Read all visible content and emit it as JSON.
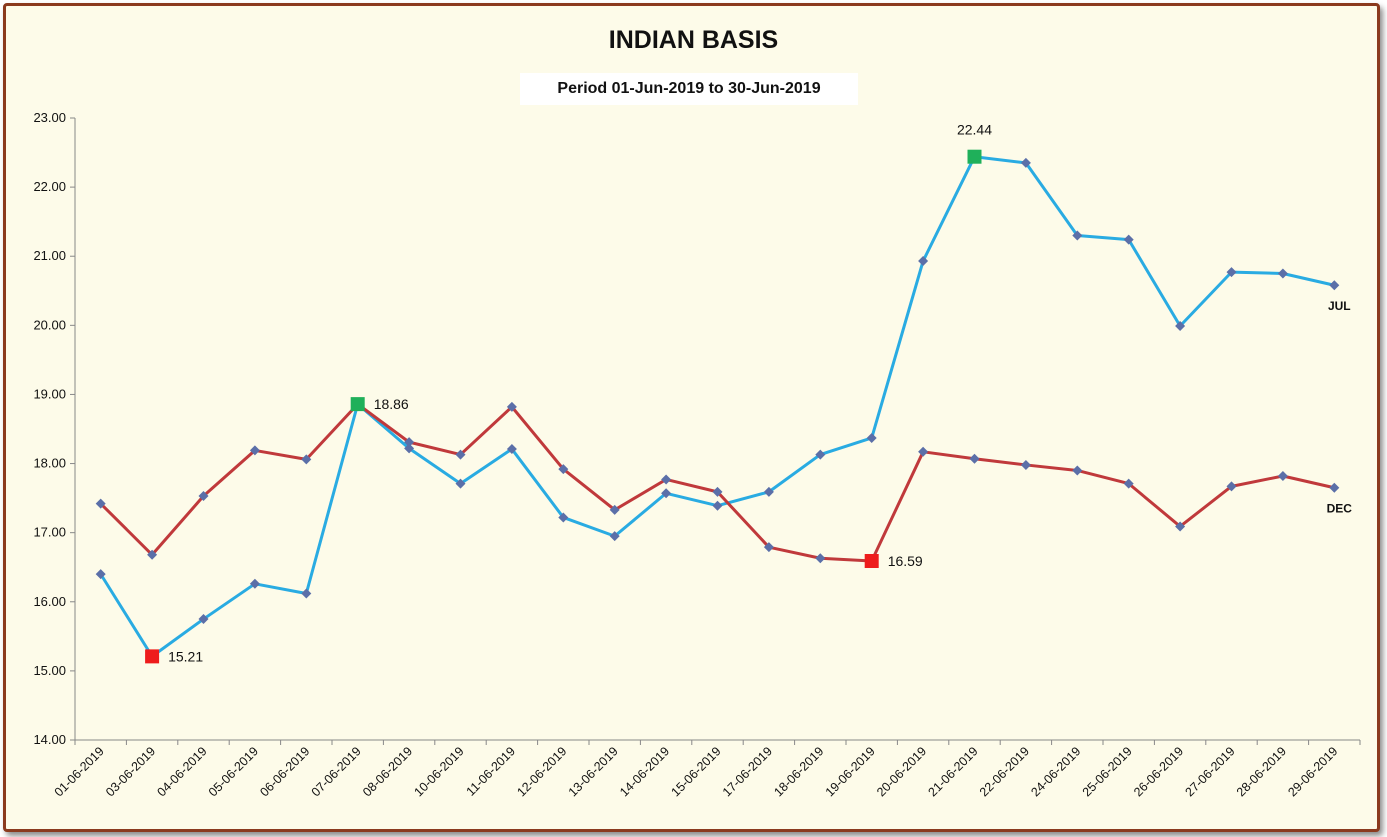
{
  "chart_data": {
    "type": "line",
    "title": "INDIAN BASIS",
    "subtitle": "Period 01-Jun-2019 to 30-Jun-2019",
    "categories": [
      "01-06-2019",
      "03-06-2019",
      "04-06-2019",
      "05-06-2019",
      "06-06-2019",
      "07-06-2019",
      "08-06-2019",
      "10-06-2019",
      "11-06-2019",
      "12-06-2019",
      "13-06-2019",
      "14-06-2019",
      "15-06-2019",
      "17-06-2019",
      "18-06-2019",
      "19-06-2019",
      "20-06-2019",
      "21-06-2019",
      "22-06-2019",
      "24-06-2019",
      "25-06-2019",
      "26-06-2019",
      "27-06-2019",
      "28-06-2019",
      "29-06-2019"
    ],
    "ylim": [
      14,
      23
    ],
    "yticks": [
      "14.00",
      "15.00",
      "16.00",
      "17.00",
      "18.00",
      "19.00",
      "20.00",
      "21.00",
      "22.00",
      "23.00"
    ],
    "series": [
      {
        "name": "JUL",
        "color": "#29abe2",
        "values": [
          16.4,
          15.21,
          15.75,
          16.26,
          16.12,
          18.86,
          18.22,
          17.71,
          18.21,
          17.22,
          16.95,
          17.57,
          17.39,
          17.59,
          18.13,
          18.37,
          20.93,
          22.44,
          22.35,
          21.3,
          21.24,
          19.99,
          20.77,
          20.75,
          20.58
        ]
      },
      {
        "name": "DEC",
        "color": "#c0393b",
        "values": [
          17.42,
          16.68,
          17.53,
          18.19,
          18.06,
          18.86,
          18.31,
          18.13,
          18.82,
          17.92,
          17.33,
          17.77,
          17.59,
          16.79,
          16.63,
          16.59,
          18.17,
          18.07,
          17.98,
          17.9,
          17.71,
          17.09,
          17.67,
          17.82,
          17.65
        ]
      }
    ],
    "annotations": [
      {
        "series": 0,
        "index": 1,
        "text": "15.21",
        "kind": "min",
        "color": "#ee1c1c"
      },
      {
        "series": 0,
        "index": 17,
        "text": "22.44",
        "kind": "max",
        "color": "#1fb05a"
      },
      {
        "series": 1,
        "index": 15,
        "text": "16.59",
        "kind": "min",
        "color": "#ee1c1c"
      },
      {
        "series": 1,
        "index": 5,
        "text": "18.86",
        "kind": "max",
        "color": "#1fb05a"
      }
    ],
    "marker_color": "#5b6fa8",
    "grid": false,
    "legend": "end-of-line labels"
  }
}
